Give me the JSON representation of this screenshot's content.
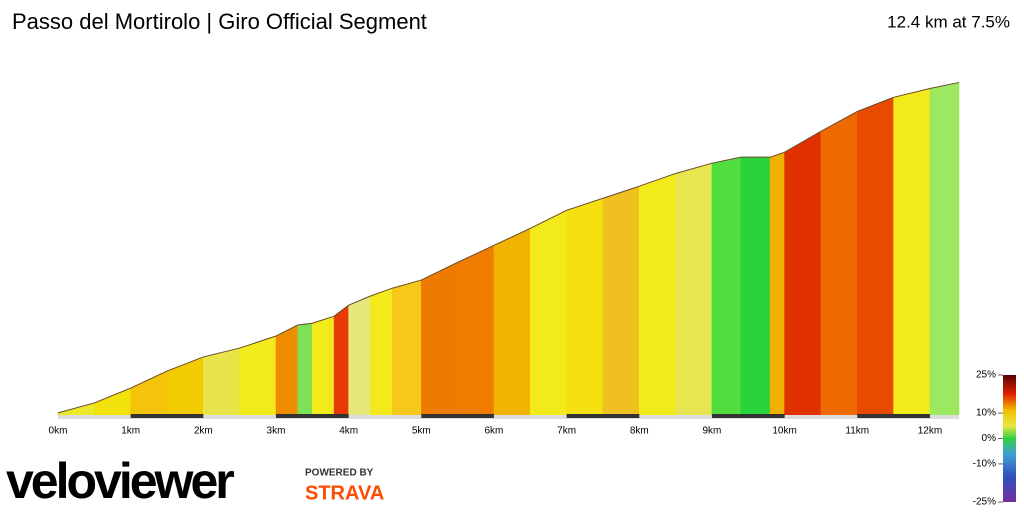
{
  "chart_data": {
    "type": "area",
    "title": "Passo del Mortirolo | Giro Official Segment",
    "subtitle": "12.4 km at 7.5%",
    "x": [
      0,
      0.5,
      1,
      1.5,
      2,
      2.5,
      3,
      3.3,
      3.5,
      3.8,
      4,
      4.3,
      4.6,
      5,
      5.5,
      6,
      6.5,
      7,
      7.5,
      8,
      8.5,
      9,
      9.4,
      9.8,
      10,
      10.5,
      11,
      11.5,
      12,
      12.4
    ],
    "y": [
      906,
      934,
      976,
      1024,
      1064,
      1089,
      1123,
      1154,
      1159,
      1179,
      1210,
      1236,
      1258,
      1281,
      1331,
      1379,
      1427,
      1478,
      1512,
      1546,
      1582,
      1611,
      1628,
      1628,
      1642,
      1701,
      1757,
      1797,
      1822,
      1839
    ],
    "segment_colors": [
      "#ece82a",
      "#f2e20c",
      "#f4c40a",
      "#f2cc00",
      "#e8e44a",
      "#f2ea1a",
      "#f08c00",
      "#7ee055",
      "#f2ea1a",
      "#e83a08",
      "#e6e87c",
      "#f2ea1a",
      "#f5c81a",
      "#ee7a00",
      "#f07d00",
      "#f0b400",
      "#f2ea1a",
      "#f5e010",
      "#f0c020",
      "#f2ea1a",
      "#e8e650",
      "#50dd40",
      "#28d43a",
      "#f0b000",
      "#e03000",
      "#ee6a00",
      "#e84a00",
      "#f2ea1a",
      "#9ee860"
    ],
    "xlim": [
      0,
      12.4
    ],
    "ylim": [
      900,
      1860
    ],
    "xticks": [
      {
        "value": 0,
        "label": "0km"
      },
      {
        "value": 1,
        "label": "1km"
      },
      {
        "value": 2,
        "label": "2km"
      },
      {
        "value": 3,
        "label": "3km"
      },
      {
        "value": 4,
        "label": "4km"
      },
      {
        "value": 5,
        "label": "5km"
      },
      {
        "value": 6,
        "label": "6km"
      },
      {
        "value": 7,
        "label": "7km"
      },
      {
        "value": 8,
        "label": "8km"
      },
      {
        "value": 9,
        "label": "9km"
      },
      {
        "value": 10,
        "label": "10km"
      },
      {
        "value": 11,
        "label": "11km"
      },
      {
        "value": 12,
        "label": "12km"
      }
    ],
    "colorbar_lim": [
      -25,
      25
    ],
    "colorbar_ticks": [
      {
        "value": 25,
        "label": "25%"
      },
      {
        "value": 10,
        "label": "10%"
      },
      {
        "value": 0,
        "label": "0%"
      },
      {
        "value": -10,
        "label": "-10%"
      },
      {
        "value": -25,
        "label": "-25%"
      }
    ],
    "brand": "veloviewer",
    "powered_by": "POWERED BY",
    "partner": "STRAVA"
  }
}
